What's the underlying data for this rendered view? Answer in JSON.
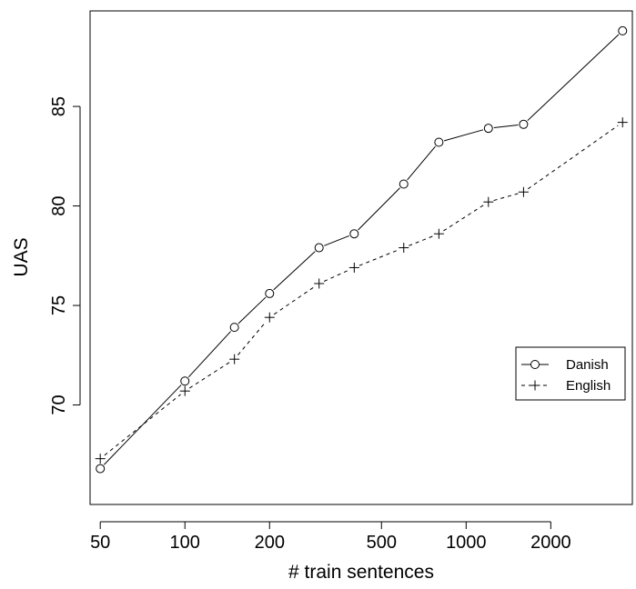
{
  "chart_data": {
    "type": "line",
    "title": "",
    "xlabel": "# train sentences",
    "ylabel": "UAS",
    "xscale": "log",
    "xlim": [
      46,
      3900
    ],
    "ylim": [
      65.0,
      89.8
    ],
    "xticks": [
      50,
      100,
      200,
      500,
      1000,
      2000
    ],
    "xtick_labels": [
      "50",
      "100",
      "200",
      "500",
      "1000",
      "2000"
    ],
    "yticks": [
      70,
      75,
      80,
      85
    ],
    "ytick_labels": [
      "70",
      "75",
      "80",
      "85"
    ],
    "grid": false,
    "legend_position": "right",
    "series": [
      {
        "name": "Danish",
        "marker": "circle",
        "line_style": "solid",
        "x": [
          50,
          100,
          150,
          200,
          300,
          400,
          600,
          800,
          1200,
          1600,
          3600
        ],
        "y": [
          66.8,
          71.2,
          73.9,
          75.6,
          77.9,
          78.6,
          81.1,
          83.2,
          83.9,
          84.1,
          88.8
        ]
      },
      {
        "name": "English",
        "marker": "plus",
        "line_style": "dashed",
        "x": [
          50,
          100,
          150,
          200,
          300,
          400,
          600,
          800,
          1200,
          1600,
          3600
        ],
        "y": [
          67.3,
          70.7,
          72.3,
          74.4,
          76.1,
          76.9,
          77.9,
          78.6,
          80.2,
          80.7,
          84.2
        ]
      }
    ]
  }
}
